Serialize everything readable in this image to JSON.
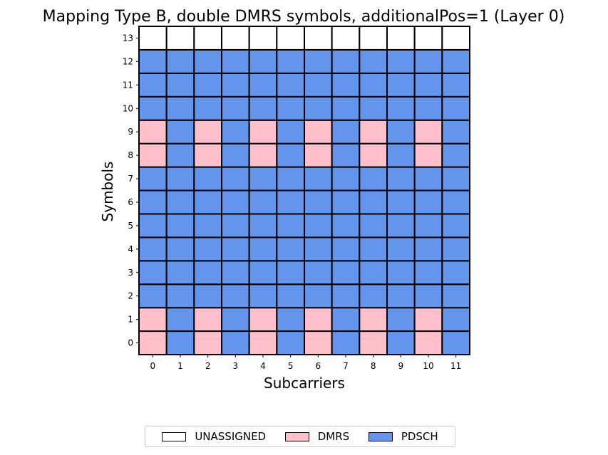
{
  "chart_data": {
    "type": "heatmap",
    "title": "Mapping Type B, double DMRS symbols, additionalPos=1 (Layer 0)",
    "xlabel": "Subcarriers",
    "ylabel": "Symbols",
    "x": [
      0,
      1,
      2,
      3,
      4,
      5,
      6,
      7,
      8,
      9,
      10,
      11
    ],
    "y": [
      0,
      1,
      2,
      3,
      4,
      5,
      6,
      7,
      8,
      9,
      10,
      11,
      12,
      13
    ],
    "categories": [
      "UNASSIGNED",
      "DMRS",
      "PDSCH"
    ],
    "colors": {
      "UNASSIGNED": "#ffffff",
      "DMRS": "#ffc0cb",
      "PDSCH": "#6495ed"
    },
    "grid": [
      [
        "DMRS",
        "PDSCH",
        "DMRS",
        "PDSCH",
        "DMRS",
        "PDSCH",
        "DMRS",
        "PDSCH",
        "DMRS",
        "PDSCH",
        "DMRS",
        "PDSCH"
      ],
      [
        "DMRS",
        "PDSCH",
        "DMRS",
        "PDSCH",
        "DMRS",
        "PDSCH",
        "DMRS",
        "PDSCH",
        "DMRS",
        "PDSCH",
        "DMRS",
        "PDSCH"
      ],
      [
        "PDSCH",
        "PDSCH",
        "PDSCH",
        "PDSCH",
        "PDSCH",
        "PDSCH",
        "PDSCH",
        "PDSCH",
        "PDSCH",
        "PDSCH",
        "PDSCH",
        "PDSCH"
      ],
      [
        "PDSCH",
        "PDSCH",
        "PDSCH",
        "PDSCH",
        "PDSCH",
        "PDSCH",
        "PDSCH",
        "PDSCH",
        "PDSCH",
        "PDSCH",
        "PDSCH",
        "PDSCH"
      ],
      [
        "PDSCH",
        "PDSCH",
        "PDSCH",
        "PDSCH",
        "PDSCH",
        "PDSCH",
        "PDSCH",
        "PDSCH",
        "PDSCH",
        "PDSCH",
        "PDSCH",
        "PDSCH"
      ],
      [
        "PDSCH",
        "PDSCH",
        "PDSCH",
        "PDSCH",
        "PDSCH",
        "PDSCH",
        "PDSCH",
        "PDSCH",
        "PDSCH",
        "PDSCH",
        "PDSCH",
        "PDSCH"
      ],
      [
        "PDSCH",
        "PDSCH",
        "PDSCH",
        "PDSCH",
        "PDSCH",
        "PDSCH",
        "PDSCH",
        "PDSCH",
        "PDSCH",
        "PDSCH",
        "PDSCH",
        "PDSCH"
      ],
      [
        "PDSCH",
        "PDSCH",
        "PDSCH",
        "PDSCH",
        "PDSCH",
        "PDSCH",
        "PDSCH",
        "PDSCH",
        "PDSCH",
        "PDSCH",
        "PDSCH",
        "PDSCH"
      ],
      [
        "DMRS",
        "PDSCH",
        "DMRS",
        "PDSCH",
        "DMRS",
        "PDSCH",
        "DMRS",
        "PDSCH",
        "DMRS",
        "PDSCH",
        "DMRS",
        "PDSCH"
      ],
      [
        "DMRS",
        "PDSCH",
        "DMRS",
        "PDSCH",
        "DMRS",
        "PDSCH",
        "DMRS",
        "PDSCH",
        "DMRS",
        "PDSCH",
        "DMRS",
        "PDSCH"
      ],
      [
        "PDSCH",
        "PDSCH",
        "PDSCH",
        "PDSCH",
        "PDSCH",
        "PDSCH",
        "PDSCH",
        "PDSCH",
        "PDSCH",
        "PDSCH",
        "PDSCH",
        "PDSCH"
      ],
      [
        "PDSCH",
        "PDSCH",
        "PDSCH",
        "PDSCH",
        "PDSCH",
        "PDSCH",
        "PDSCH",
        "PDSCH",
        "PDSCH",
        "PDSCH",
        "PDSCH",
        "PDSCH"
      ],
      [
        "PDSCH",
        "PDSCH",
        "PDSCH",
        "PDSCH",
        "PDSCH",
        "PDSCH",
        "PDSCH",
        "PDSCH",
        "PDSCH",
        "PDSCH",
        "PDSCH",
        "PDSCH"
      ],
      [
        "UNASSIGNED",
        "UNASSIGNED",
        "UNASSIGNED",
        "UNASSIGNED",
        "UNASSIGNED",
        "UNASSIGNED",
        "UNASSIGNED",
        "UNASSIGNED",
        "UNASSIGNED",
        "UNASSIGNED",
        "UNASSIGNED",
        "UNASSIGNED"
      ]
    ],
    "legend": {
      "position": "bottom-center",
      "entries": [
        "UNASSIGNED",
        "DMRS",
        "PDSCH"
      ]
    }
  }
}
